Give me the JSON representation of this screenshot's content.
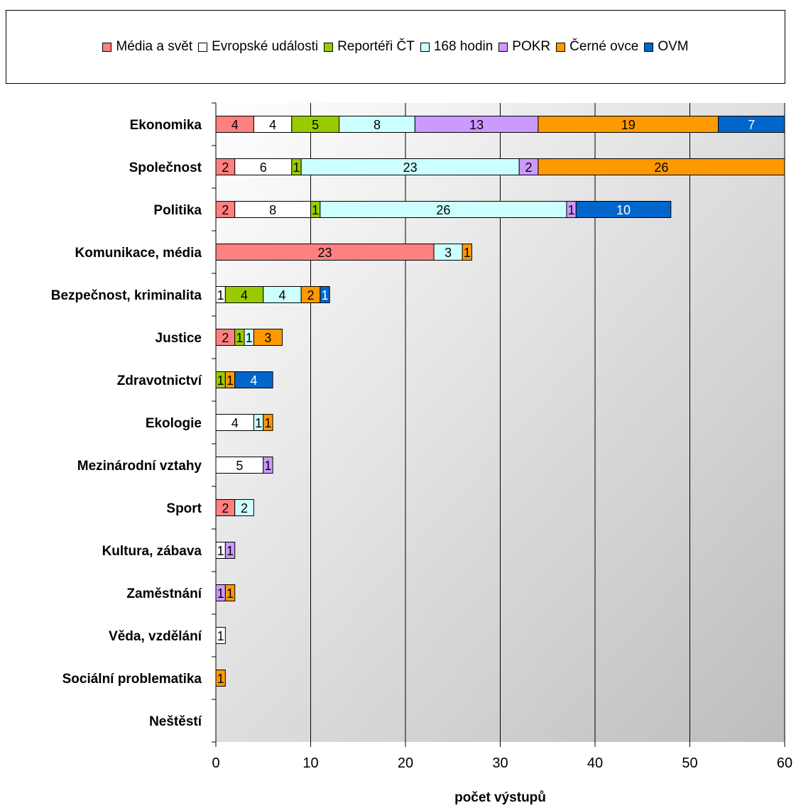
{
  "chart_data": {
    "type": "bar",
    "orientation": "horizontal",
    "stacked": true,
    "xlabel": "počet výstupů",
    "xlim": [
      0,
      60
    ],
    "xticks": [
      0,
      10,
      20,
      30,
      40,
      50,
      60
    ],
    "grid": true,
    "legend_placement": "top",
    "categories": [
      "Ekonomika",
      "Společnost",
      "Politika",
      "Komunikace, média",
      "Bezpečnost, kriminalita",
      "Justice",
      "Zdravotnictví",
      "Ekologie",
      "Mezinárodní vztahy",
      "Sport",
      "Kultura, zábava",
      "Zaměstnání",
      "Věda, vzdělání",
      "Sociální problematika",
      "Neštěstí"
    ],
    "series": [
      {
        "name": "Média a svět",
        "color": "#FF8080",
        "label_color": "#000000",
        "values": [
          4,
          2,
          2,
          23,
          0,
          2,
          0,
          0,
          0,
          2,
          0,
          0,
          0,
          0,
          0
        ]
      },
      {
        "name": "Evropské události",
        "color": "#FFFFFF",
        "label_color": "#000000",
        "values": [
          4,
          6,
          8,
          0,
          1,
          0,
          0,
          4,
          5,
          0,
          1,
          0,
          1,
          0,
          0
        ]
      },
      {
        "name": "Reportéři ČT",
        "color": "#99CC00",
        "label_color": "#000000",
        "values": [
          5,
          1,
          1,
          0,
          4,
          1,
          1,
          0,
          0,
          0,
          0,
          0,
          0,
          0,
          0
        ]
      },
      {
        "name": "168 hodin",
        "color": "#CCFFFF",
        "label_color": "#000000",
        "values": [
          8,
          23,
          26,
          3,
          4,
          1,
          0,
          1,
          0,
          2,
          0,
          0,
          0,
          0,
          0
        ]
      },
      {
        "name": "POKR",
        "color": "#CC99FF",
        "label_color": "#000000",
        "values": [
          13,
          2,
          1,
          0,
          0,
          0,
          0,
          0,
          1,
          0,
          1,
          1,
          0,
          0,
          0
        ]
      },
      {
        "name": "Černé ovce",
        "color": "#FF9900",
        "label_color": "#000000",
        "values": [
          19,
          26,
          0,
          1,
          2,
          3,
          1,
          1,
          0,
          0,
          0,
          1,
          0,
          1,
          0
        ]
      },
      {
        "name": "OVM",
        "color": "#0066CC",
        "label_color": "#FFFFFF",
        "values": [
          7,
          0,
          10,
          0,
          1,
          0,
          4,
          0,
          0,
          0,
          0,
          0,
          0,
          0,
          0
        ]
      }
    ]
  }
}
